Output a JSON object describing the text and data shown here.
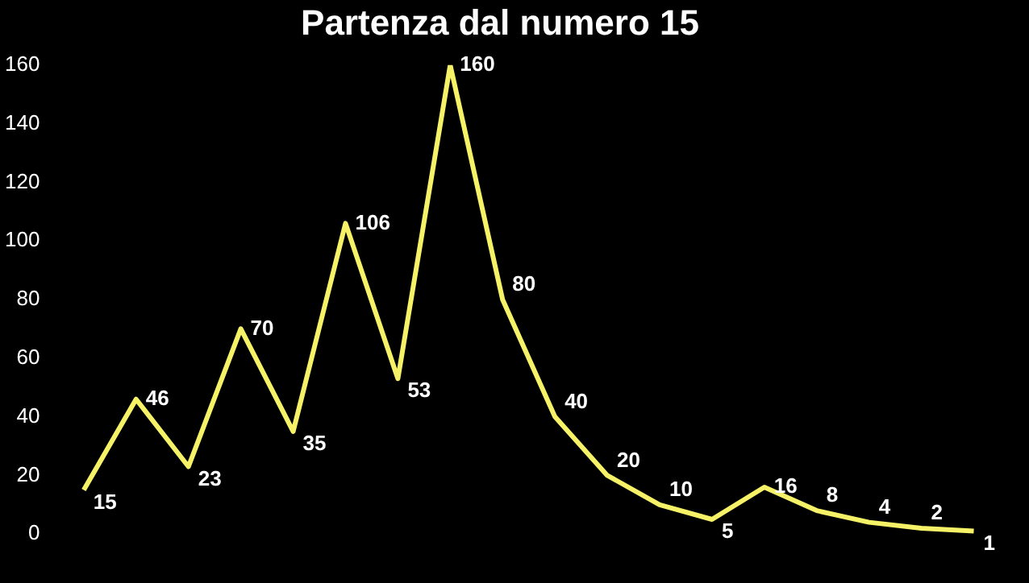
{
  "chart_data": {
    "type": "line",
    "title": "Partenza dal numero 15",
    "categories": [
      null,
      null,
      null,
      null,
      null,
      null,
      null,
      null,
      null,
      null,
      null,
      null,
      null,
      null,
      null,
      null,
      null,
      null
    ],
    "values": [
      15,
      46,
      23,
      70,
      35,
      106,
      53,
      160,
      80,
      40,
      20,
      10,
      5,
      16,
      8,
      4,
      2,
      1
    ],
    "color": "#f6f267",
    "ylim": [
      0,
      160
    ],
    "yticks": [
      0,
      20,
      40,
      60,
      80,
      100,
      120,
      140,
      160
    ],
    "grid": false,
    "legend": false,
    "marker": "none",
    "data_labels": true
  }
}
